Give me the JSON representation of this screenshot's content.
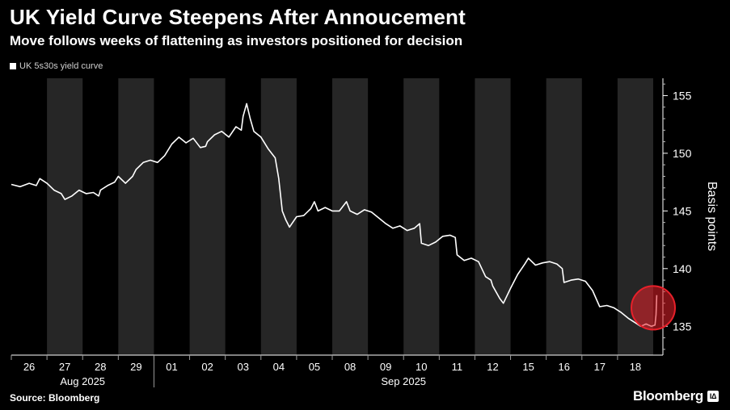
{
  "header": {
    "title": "UK Yield Curve Steepens After Annoucement",
    "subtitle": "Move follows weeks of flattening as investors positioned for decision"
  },
  "legend": {
    "label": "UK 5s30s yield curve"
  },
  "footer": {
    "source": "Source: Bloomberg",
    "brand": "Bloomberg",
    "badge": "IΔ"
  },
  "colors": {
    "background": "#000000",
    "band": "#262626",
    "line": "#ffffff",
    "highlight": "#e8202a"
  },
  "chart_data": {
    "type": "line",
    "title": "UK Yield Curve Steepens After Annoucement",
    "ylabel": "Basis points",
    "xlabel": "",
    "ylim": [
      132.5,
      156.5
    ],
    "yticks": [
      135,
      140,
      145,
      150,
      155
    ],
    "grid": false,
    "categories": [
      "26",
      "27",
      "28",
      "29",
      "01",
      "02",
      "03",
      "04",
      "05",
      "08",
      "09",
      "10",
      "11",
      "12",
      "15",
      "16",
      "17",
      "18"
    ],
    "month_labels": [
      {
        "label": "Aug 2025",
        "from": 0,
        "to": 3
      },
      {
        "label": "Sep 2025",
        "from": 4,
        "to": 17
      }
    ],
    "series": [
      {
        "name": "UK 5s30s yield curve",
        "points": [
          [
            -0.5,
            147.3
          ],
          [
            -0.25,
            147.1
          ],
          [
            0,
            147.4
          ],
          [
            0.2,
            147.2
          ],
          [
            0.3,
            147.8
          ],
          [
            0.5,
            147.4
          ],
          [
            0.7,
            146.8
          ],
          [
            0.9,
            146.5
          ],
          [
            1.0,
            146.0
          ],
          [
            1.2,
            146.3
          ],
          [
            1.4,
            146.8
          ],
          [
            1.6,
            146.5
          ],
          [
            1.8,
            146.6
          ],
          [
            1.95,
            146.3
          ],
          [
            2.0,
            146.8
          ],
          [
            2.2,
            147.2
          ],
          [
            2.4,
            147.5
          ],
          [
            2.5,
            148.0
          ],
          [
            2.7,
            147.4
          ],
          [
            2.9,
            148.0
          ],
          [
            3.0,
            148.6
          ],
          [
            3.2,
            149.2
          ],
          [
            3.4,
            149.4
          ],
          [
            3.6,
            149.2
          ],
          [
            3.8,
            149.8
          ],
          [
            4.0,
            150.8
          ],
          [
            4.2,
            151.4
          ],
          [
            4.4,
            150.9
          ],
          [
            4.6,
            151.3
          ],
          [
            4.8,
            150.5
          ],
          [
            4.95,
            150.6
          ],
          [
            5.0,
            151.0
          ],
          [
            5.2,
            151.6
          ],
          [
            5.4,
            151.9
          ],
          [
            5.6,
            151.4
          ],
          [
            5.8,
            152.3
          ],
          [
            5.95,
            152.0
          ],
          [
            6.0,
            153.2
          ],
          [
            6.1,
            154.3
          ],
          [
            6.2,
            153.0
          ],
          [
            6.3,
            151.9
          ],
          [
            6.5,
            151.4
          ],
          [
            6.7,
            150.4
          ],
          [
            6.9,
            149.6
          ],
          [
            7.0,
            147.8
          ],
          [
            7.1,
            145.0
          ],
          [
            7.2,
            144.2
          ],
          [
            7.3,
            143.6
          ],
          [
            7.5,
            144.5
          ],
          [
            7.7,
            144.6
          ],
          [
            7.9,
            145.2
          ],
          [
            8.0,
            145.8
          ],
          [
            8.1,
            145.0
          ],
          [
            8.3,
            145.3
          ],
          [
            8.5,
            145.0
          ],
          [
            8.7,
            145.0
          ],
          [
            8.9,
            145.8
          ],
          [
            9.0,
            145.0
          ],
          [
            9.2,
            144.7
          ],
          [
            9.4,
            145.1
          ],
          [
            9.6,
            144.9
          ],
          [
            9.8,
            144.4
          ],
          [
            10.0,
            143.9
          ],
          [
            10.2,
            143.5
          ],
          [
            10.4,
            143.7
          ],
          [
            10.6,
            143.3
          ],
          [
            10.8,
            143.5
          ],
          [
            10.95,
            143.9
          ],
          [
            11.0,
            142.2
          ],
          [
            11.2,
            142.0
          ],
          [
            11.4,
            142.3
          ],
          [
            11.6,
            142.8
          ],
          [
            11.8,
            142.9
          ],
          [
            11.95,
            142.7
          ],
          [
            12.0,
            141.2
          ],
          [
            12.2,
            140.7
          ],
          [
            12.4,
            140.9
          ],
          [
            12.6,
            140.6
          ],
          [
            12.8,
            139.3
          ],
          [
            12.95,
            139.0
          ],
          [
            13.0,
            138.5
          ],
          [
            13.2,
            137.4
          ],
          [
            13.3,
            137.0
          ],
          [
            13.5,
            138.3
          ],
          [
            13.7,
            139.5
          ],
          [
            13.9,
            140.4
          ],
          [
            14.0,
            140.9
          ],
          [
            14.2,
            140.3
          ],
          [
            14.4,
            140.5
          ],
          [
            14.6,
            140.6
          ],
          [
            14.8,
            140.4
          ],
          [
            14.95,
            140.0
          ],
          [
            15.0,
            138.8
          ],
          [
            15.2,
            139.0
          ],
          [
            15.4,
            139.1
          ],
          [
            15.6,
            138.9
          ],
          [
            15.8,
            138.1
          ],
          [
            16.0,
            136.7
          ],
          [
            16.2,
            136.8
          ],
          [
            16.4,
            136.6
          ],
          [
            16.6,
            136.2
          ],
          [
            16.8,
            135.7
          ],
          [
            16.95,
            135.4
          ],
          [
            17.0,
            135.3
          ],
          [
            17.15,
            135.0
          ],
          [
            17.3,
            135.2
          ],
          [
            17.45,
            135.0
          ],
          [
            17.55,
            135.1
          ],
          [
            17.58,
            136.0
          ],
          [
            17.6,
            137.7
          ]
        ]
      }
    ],
    "annotations": [
      {
        "type": "circle-highlight",
        "x": 17.5,
        "y": 136.6
      }
    ]
  }
}
